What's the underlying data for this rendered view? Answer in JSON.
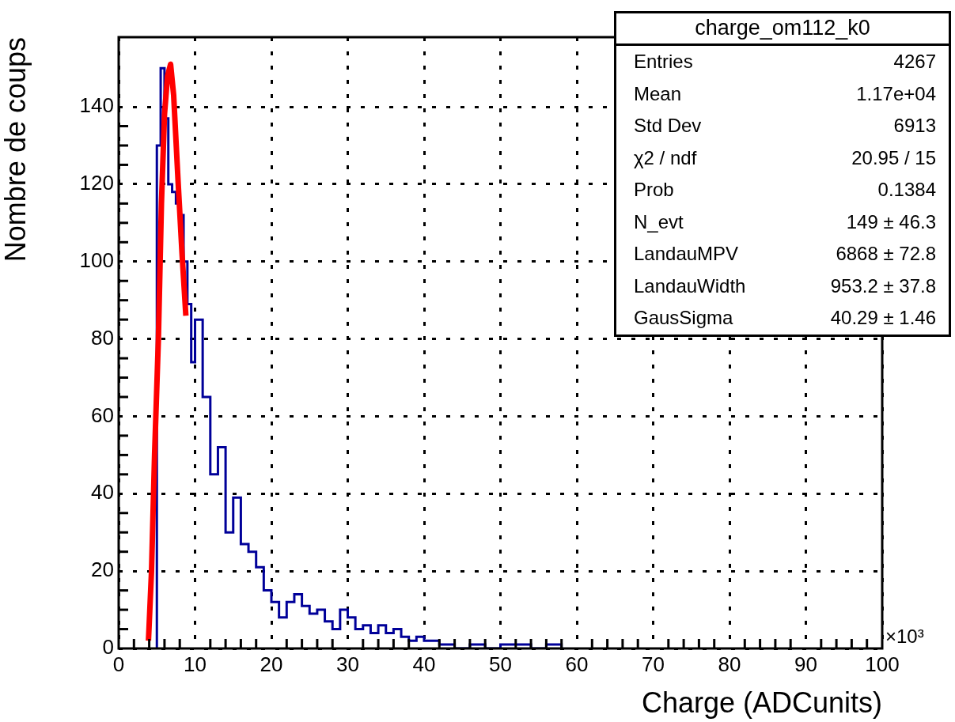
{
  "chart_data": {
    "type": "histogram",
    "title": "charge_om112_k0",
    "xlabel": "Charge (ADCunits)",
    "ylabel": "Nombre de coups",
    "bins": [
      5,
      5.5,
      6,
      6.5,
      7,
      7.5,
      8,
      8.5,
      9,
      9.5,
      10,
      11,
      12,
      13,
      14,
      15,
      16,
      17,
      18,
      19,
      20,
      21,
      22,
      23,
      24,
      25,
      26,
      27,
      28,
      29,
      30,
      31,
      32,
      33,
      34,
      35,
      36,
      37,
      38,
      39,
      40,
      42,
      44,
      46,
      48,
      50,
      52,
      54,
      56,
      58
    ],
    "values": [
      130,
      150,
      137,
      120,
      118,
      115,
      112,
      100,
      89,
      74,
      85,
      65,
      45,
      52,
      30,
      39,
      27,
      25,
      21,
      15,
      12,
      8,
      12,
      14,
      11,
      9,
      10,
      7,
      5,
      10,
      8,
      5,
      6,
      4,
      6,
      4,
      5,
      3,
      2,
      3,
      2,
      1,
      0,
      1,
      0,
      1,
      1,
      0,
      1
    ],
    "color": "#000099",
    "series": [
      {
        "type": "line",
        "color": "#ff0000",
        "x": [
          3.9,
          4.3,
          4.7,
          5.2,
          5.6,
          6,
          6.4,
          6.8,
          7.2,
          7.8,
          8.3,
          8.8
        ],
        "values": [
          2,
          20,
          50,
          80,
          115,
          138,
          148,
          151,
          143,
          120,
          102,
          86
        ]
      }
    ],
    "xlim": [
      0,
      100
    ],
    "xticks": [
      0,
      10,
      20,
      30,
      40,
      50,
      60,
      70,
      80,
      90,
      100
    ],
    "ylim": [
      0,
      158
    ],
    "yticks": [
      0,
      20,
      40,
      60,
      80,
      100,
      120,
      140
    ],
    "grid": true,
    "legend": false,
    "annotations": [
      "Entries",
      "4267",
      "Mean",
      "1.17e+04",
      "Std Dev",
      "6913",
      "χ2 / ndf",
      "20.95 / 15",
      "Prob",
      "0.1384",
      "N_evt",
      "149 ± 46.3",
      "LandauMPV",
      "6868  ± 72.8",
      "LandauWidth",
      "953.2 ± 37.8",
      "GausSigma",
      "40.29 ± 1.46",
      "×10³"
    ]
  }
}
